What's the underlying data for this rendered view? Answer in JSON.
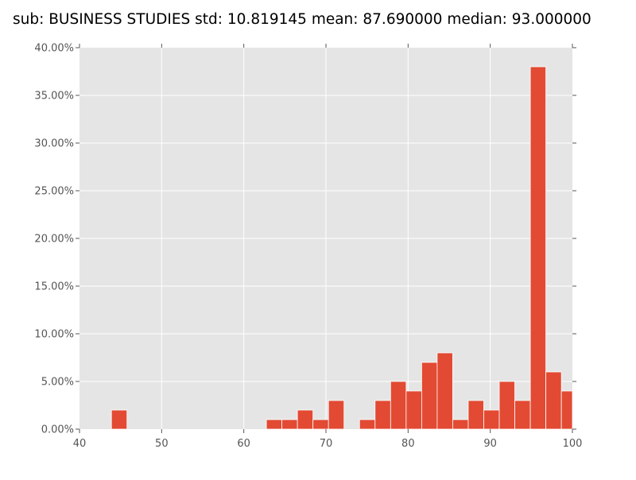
{
  "chart_data": {
    "type": "bar",
    "title": "sub: BUSINESS STUDIES std: 10.819145 mean: 87.690000 median: 93.000000",
    "xlabel": "",
    "ylabel": "",
    "xlim": [
      40,
      100
    ],
    "ylim": [
      0,
      0.4
    ],
    "grid": true,
    "x_ticks": [
      40,
      50,
      60,
      70,
      80,
      90,
      100
    ],
    "x_tick_labels": [
      "40",
      "50",
      "60",
      "70",
      "80",
      "90",
      "100"
    ],
    "y_ticks": [
      0,
      0.05,
      0.1,
      0.15,
      0.2,
      0.25,
      0.3,
      0.35,
      0.4
    ],
    "y_tick_labels": [
      "0.00%",
      "5.00%",
      "10.00%",
      "15.00%",
      "20.00%",
      "25.00%",
      "30.00%",
      "35.00%",
      "40.00%"
    ],
    "bins": [
      {
        "x0": 43.89,
        "x1": 45.78,
        "value": 0.02
      },
      {
        "x0": 62.75,
        "x1": 64.64,
        "value": 0.01
      },
      {
        "x0": 64.64,
        "x1": 66.53,
        "value": 0.01
      },
      {
        "x0": 66.53,
        "x1": 68.42,
        "value": 0.02
      },
      {
        "x0": 68.42,
        "x1": 70.31,
        "value": 0.01
      },
      {
        "x0": 70.31,
        "x1": 72.2,
        "value": 0.03
      },
      {
        "x0": 74.09,
        "x1": 75.98,
        "value": 0.01
      },
      {
        "x0": 75.98,
        "x1": 77.87,
        "value": 0.03
      },
      {
        "x0": 77.87,
        "x1": 79.76,
        "value": 0.05
      },
      {
        "x0": 79.76,
        "x1": 81.65,
        "value": 0.04
      },
      {
        "x0": 81.65,
        "x1": 83.54,
        "value": 0.07
      },
      {
        "x0": 83.54,
        "x1": 85.43,
        "value": 0.08
      },
      {
        "x0": 85.43,
        "x1": 87.32,
        "value": 0.01
      },
      {
        "x0": 87.32,
        "x1": 89.21,
        "value": 0.03
      },
      {
        "x0": 89.21,
        "x1": 91.1,
        "value": 0.02
      },
      {
        "x0": 91.1,
        "x1": 92.99,
        "value": 0.05
      },
      {
        "x0": 92.99,
        "x1": 94.88,
        "value": 0.03
      },
      {
        "x0": 94.88,
        "x1": 96.77,
        "value": 0.38
      },
      {
        "x0": 96.77,
        "x1": 98.66,
        "value": 0.06
      },
      {
        "x0": 98.66,
        "x1": 100.55,
        "value": 0.04
      }
    ],
    "colors": {
      "plot_background": "#e5e5e5",
      "bar": "#e24a33",
      "bar_edge": "#ffffff",
      "grid": "#ffffff",
      "tick": "#555555",
      "title": "#000000"
    }
  }
}
